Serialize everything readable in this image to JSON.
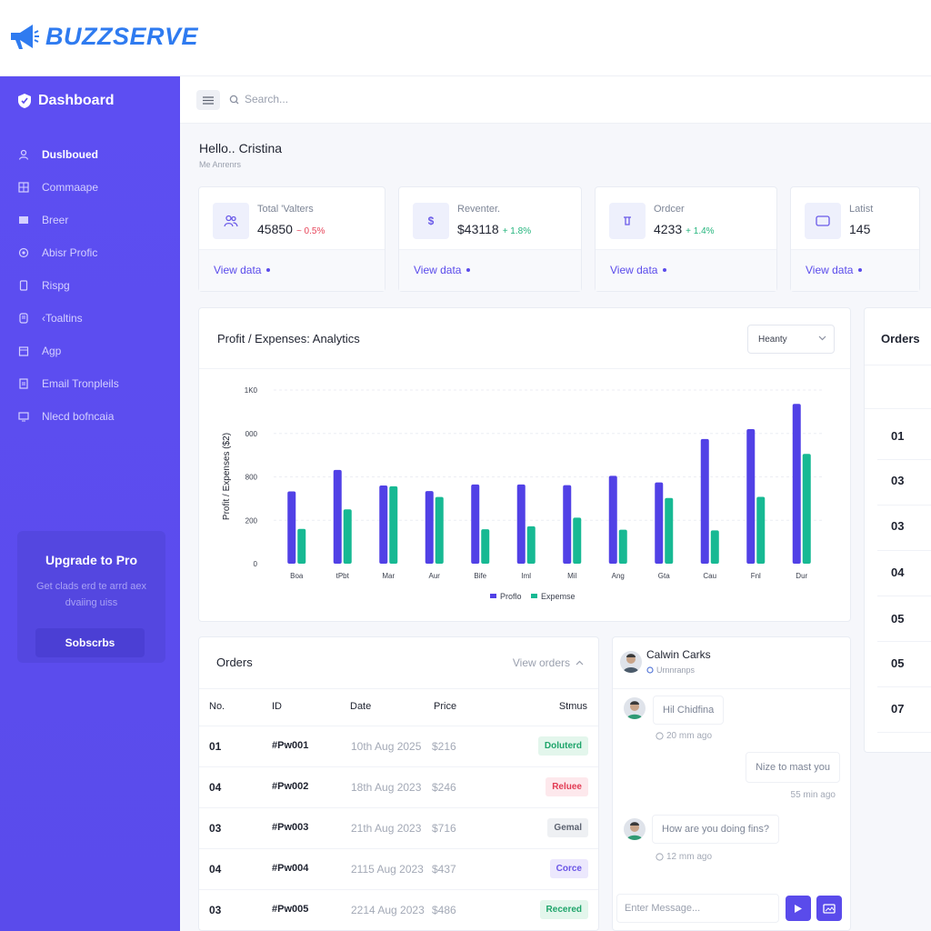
{
  "brand": {
    "name": "BUZZSERVE"
  },
  "sidebar": {
    "heading": "Dashboard",
    "items": [
      {
        "label": "Duslboued",
        "icon": "user-icon"
      },
      {
        "label": "Commaape",
        "icon": "grid-icon"
      },
      {
        "label": "Breer",
        "icon": "image-icon"
      },
      {
        "label": "Abisr Profic",
        "icon": "at-icon"
      },
      {
        "label": "Rispg",
        "icon": "phone-icon"
      },
      {
        "label": "‹Toaltins",
        "icon": "tablet-icon"
      },
      {
        "label": "Agp",
        "icon": "calendar-icon"
      },
      {
        "label": "Email Tronpleils",
        "icon": "file-icon"
      },
      {
        "label": "Nlecd bofncaia",
        "icon": "screen-icon"
      }
    ],
    "upgrade": {
      "title": "Upgrade to Pro",
      "text": "Get clads erd te arrd aex dvaiing uiss",
      "button": "Sobscrbs"
    }
  },
  "header": {
    "search_placeholder": "Search..."
  },
  "greeting": {
    "title": "Hello.. Cristina",
    "subtitle": "Me Anrenrs"
  },
  "stats": [
    {
      "label": "Total 'Valters",
      "value": "45850",
      "delta": "~ 0.5%",
      "trend": "down",
      "link": "View data",
      "icon": "users-icon"
    },
    {
      "label": "Reventer.",
      "value": "$43118",
      "delta": "+ 1.8%",
      "trend": "up",
      "link": "View data",
      "icon": "dollar-icon"
    },
    {
      "label": "Ordcer",
      "value": "4233",
      "delta": "+ 1.4%",
      "trend": "up",
      "link": "View data",
      "icon": "bag-icon"
    },
    {
      "label": "Latist",
      "value": "145",
      "delta": "",
      "trend": "",
      "link": "View data",
      "icon": "monitor-icon"
    }
  ],
  "chart": {
    "title": "Profit / Expenses: Analytics",
    "select_value": "Heanty"
  },
  "chart_data": {
    "type": "bar",
    "title": "Profit / Expenses: Analytics",
    "xlabel": "",
    "ylabel": "Profit / Expenses ($2)",
    "ytick_labels": [
      "0",
      "200",
      "800",
      "000",
      "1K0"
    ],
    "ylim": [
      0,
      1000
    ],
    "categories": [
      "Boa",
      "tPbt",
      "Mar",
      "Aur",
      "Bife",
      "Iml",
      "Mil",
      "Ang",
      "Gta",
      "Cau",
      "Fnl",
      "Dur"
    ],
    "series": [
      {
        "name": "Proflo",
        "color": "#5141e6",
        "values": [
          416,
          540,
          450,
          418,
          456,
          456,
          452,
          506,
          468,
          718,
          775,
          920
        ]
      },
      {
        "name": "Expemse",
        "color": "#17b993",
        "values": [
          200,
          313,
          446,
          384,
          198,
          215,
          265,
          196,
          378,
          192,
          385,
          632
        ]
      }
    ],
    "grid": true,
    "legend": "bottom-center"
  },
  "orders_side": {
    "title": "Orders",
    "numbers": [
      "01",
      "03",
      "03",
      "04",
      "05",
      "05",
      "07"
    ]
  },
  "orders": {
    "title": "Orders",
    "link": "View orders",
    "columns": [
      "No.",
      "ID",
      "Date",
      "Price",
      "Stmus"
    ],
    "rows": [
      {
        "no": "01",
        "id": "#Pw001",
        "date": "10th Aug 2025",
        "price": "$216",
        "status": "Doluterd",
        "status_color": "#1fa56b",
        "status_bg": "#e3f6ec"
      },
      {
        "no": "04",
        "id": "#Pw002",
        "date": "18th Aug 2023",
        "price": "$246",
        "status": "Reluee",
        "status_color": "#e23c54",
        "status_bg": "#fde8ec"
      },
      {
        "no": "03",
        "id": "#Pw003",
        "date": "21th Aug 2023",
        "price": "$716",
        "status": "Gemal",
        "status_color": "#5c6270",
        "status_bg": "#eef0f3"
      },
      {
        "no": "04",
        "id": "#Pw004",
        "date": "2115 Aug 2023",
        "price": "$437",
        "status": "Corce",
        "status_color": "#6a55e6",
        "status_bg": "#ece8fd"
      },
      {
        "no": "03",
        "id": "#Pw005",
        "date": "2214 Aug 2023",
        "price": "$486",
        "status": "Recered",
        "status_color": "#1fa56b",
        "status_bg": "#e3f6ec"
      }
    ]
  },
  "chat": {
    "name": "Calwin Carks",
    "status": "Urnnranps",
    "messages": [
      {
        "text": "Hil Chidfina",
        "time": "20 mm ago"
      },
      {
        "text": "Nize to mast you",
        "time": "55 min ago"
      },
      {
        "text": "How are you doing fins?",
        "time": "12 mm ago"
      }
    ],
    "input_placeholder": "Enter Message..."
  },
  "colors": {
    "accent": "#5a4beb",
    "brand": "#2f7bf0",
    "profit": "#5141e6",
    "expense": "#17b993"
  }
}
